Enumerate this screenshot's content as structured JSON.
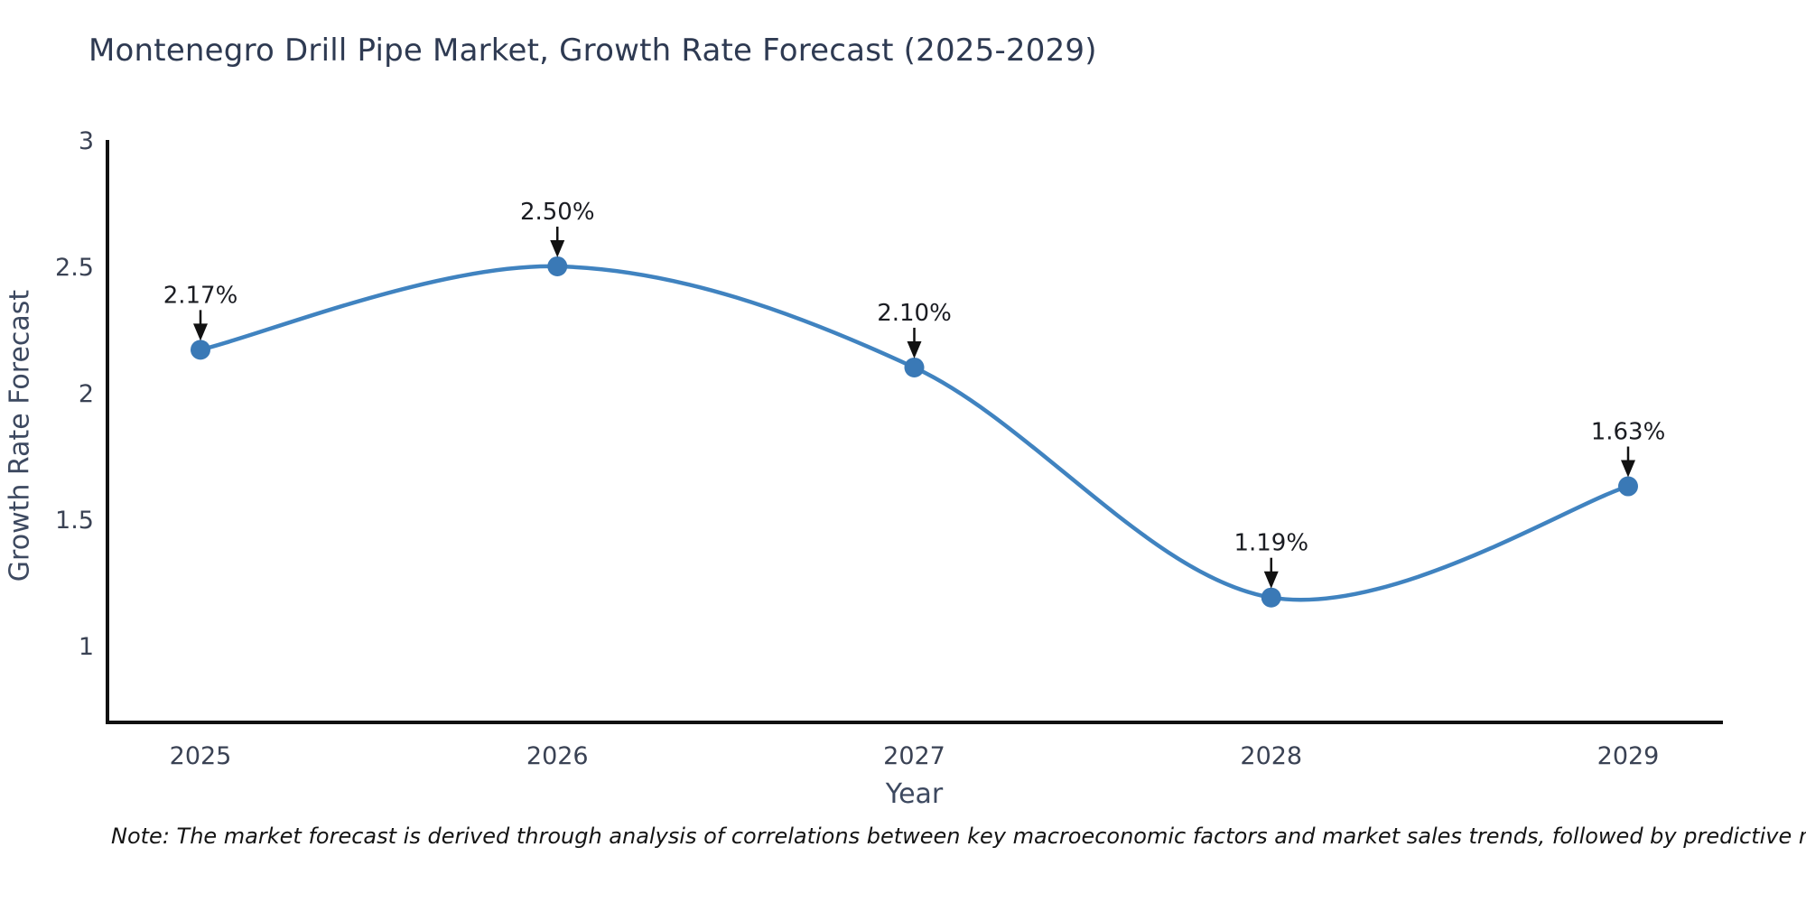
{
  "title": "Montenegro Drill Pipe Market, Growth Rate Forecast (2025-2029)",
  "note": "Note: The market forecast is derived through analysis of correlations between key macroeconomic factors and market sales trends, followed by predictive modeling to project future sales",
  "chart_data": {
    "type": "line",
    "title": "Montenegro Drill Pipe Market, Growth Rate Forecast (2025-2029)",
    "xlabel": "Year",
    "ylabel": "Growth Rate Forecast",
    "categories": [
      "2025",
      "2026",
      "2027",
      "2028",
      "2029"
    ],
    "series": [
      {
        "name": "Growth Rate Forecast",
        "values": [
          2.17,
          2.5,
          2.1,
          1.19,
          1.63
        ],
        "point_labels": [
          "2.17%",
          "2.50%",
          "2.10%",
          "1.19%",
          "1.63%"
        ]
      }
    ],
    "y_ticks": [
      1,
      1.5,
      2,
      2.5,
      3
    ],
    "ylim": [
      0.696,
      3.0
    ],
    "line_shape": "spline",
    "grid": false,
    "legend_position": "none",
    "annotations": "value labels with down arrows above each point",
    "colors": {
      "line": "#4083c0",
      "marker": "#3a79b6",
      "arrow": "#111111",
      "axis": "#111111",
      "tick_label": "#3a4254",
      "annotation_text": "#1a1c22",
      "title": "#2e3a52"
    }
  }
}
